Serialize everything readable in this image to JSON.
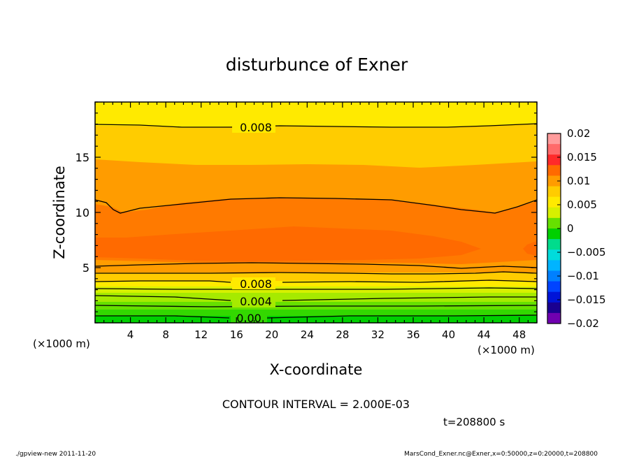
{
  "chart_data": {
    "type": "heatmap",
    "title": "disturbunce of Exner",
    "xlabel": "X-coordinate",
    "ylabel": "Z-coordinate",
    "x_unit_left": "(×1000 m)",
    "x_unit_right": "(×1000 m)",
    "xlim": [
      0,
      50
    ],
    "ylim": [
      0,
      20
    ],
    "x_ticks": [
      4,
      8,
      12,
      16,
      20,
      24,
      28,
      32,
      36,
      40,
      44,
      48
    ],
    "y_ticks": [
      5,
      10,
      15
    ],
    "contour_labels": [
      {
        "text": "0.008",
        "x": 18.3,
        "z": 17.9
      },
      {
        "text": "0.008",
        "x": 18.3,
        "z": 3.6
      },
      {
        "text": "0.004",
        "x": 18.3,
        "z": 2.0
      },
      {
        "text": "0.00",
        "x": 17.7,
        "z": 0.5
      }
    ],
    "colorbar": {
      "ticks": [
        "0.02",
        "0.015",
        "0.01",
        "0.005",
        "0",
        "−0.005",
        "−0.01",
        "−0.015",
        "−0.02"
      ],
      "colors": [
        "#ff9c9c",
        "#ff6a6a",
        "#ff2a2a",
        "#ff6a00",
        "#ff9c00",
        "#ffcc00",
        "#ffea00",
        "#d7f000",
        "#66e000",
        "#00d000",
        "#00dc8c",
        "#00dcdc",
        "#00b4ff",
        "#0080ff",
        "#0044ff",
        "#0014d8",
        "#1a0090",
        "#7000b0"
      ]
    },
    "contour_interval_text": "CONTOUR INTERVAL = 2.000E-03",
    "time_text": "t=208800 s"
  },
  "footer": {
    "left": "./gpview-new  2011-11-20",
    "right": "MarsCond_Exner.nc@Exner,x=0:50000,z=0:20000,t=208800"
  }
}
